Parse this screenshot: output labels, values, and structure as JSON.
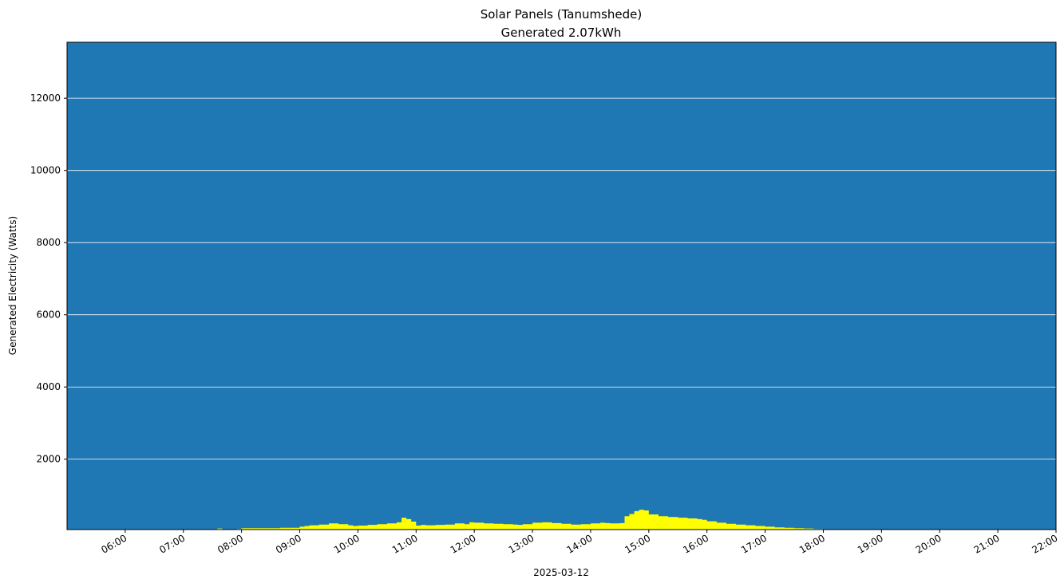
{
  "chart_data": {
    "type": "area",
    "title": "Solar Panels (Tanumshede)",
    "subtitle": "Generated 2.07kWh",
    "xlabel": "2025-03-12",
    "ylabel": "Generated Electricity (Watts)",
    "xlim": [
      "05:00",
      "22:00"
    ],
    "ylim": [
      50,
      13550
    ],
    "x_ticks": [
      "06:00",
      "07:00",
      "08:00",
      "09:00",
      "10:00",
      "11:00",
      "12:00",
      "13:00",
      "14:00",
      "15:00",
      "16:00",
      "17:00",
      "18:00",
      "19:00",
      "20:00",
      "21:00",
      "22:00"
    ],
    "y_ticks": [
      2000,
      4000,
      6000,
      8000,
      10000,
      12000
    ],
    "grid": "horizontal",
    "colors": {
      "background": "#1f77b4",
      "fill": "#ffff00",
      "grid": "#ffffff"
    },
    "series": [
      {
        "x": [
          "07:35",
          "07:40",
          "07:45",
          "07:55",
          "08:00",
          "08:10",
          "08:20",
          "08:30",
          "08:40",
          "08:50",
          "09:00",
          "09:05",
          "09:10",
          "09:20",
          "09:30",
          "09:40",
          "09:50",
          "09:55",
          "10:00",
          "10:10",
          "10:20",
          "10:30",
          "10:40",
          "10:45",
          "10:50",
          "10:55",
          "11:00",
          "11:05",
          "11:10",
          "11:20",
          "11:30",
          "11:40",
          "11:50",
          "11:55",
          "12:00",
          "12:10",
          "12:20",
          "12:30",
          "12:40",
          "12:45",
          "12:50",
          "13:00",
          "13:10",
          "13:20",
          "13:30",
          "13:40",
          "13:50",
          "14:00",
          "14:10",
          "14:15",
          "14:20",
          "14:30",
          "14:35",
          "14:40",
          "14:45",
          "14:50",
          "14:55",
          "15:00",
          "15:10",
          "15:20",
          "15:30",
          "15:40",
          "15:50",
          "15:55",
          "16:00",
          "16:10",
          "16:20",
          "16:30",
          "16:40",
          "16:50",
          "17:00",
          "17:10",
          "17:20",
          "17:30",
          "17:40",
          "17:50",
          "18:00",
          "18:05",
          "18:10"
        ],
        "y": [
          80,
          60,
          60,
          70,
          90,
          90,
          90,
          90,
          100,
          100,
          130,
          150,
          170,
          190,
          220,
          200,
          170,
          150,
          160,
          180,
          200,
          220,
          250,
          380,
          340,
          270,
          160,
          180,
          170,
          180,
          190,
          220,
          200,
          250,
          240,
          220,
          210,
          200,
          190,
          180,
          200,
          240,
          250,
          230,
          210,
          190,
          200,
          220,
          240,
          230,
          220,
          230,
          420,
          480,
          560,
          600,
          580,
          470,
          420,
          400,
          380,
          360,
          340,
          320,
          280,
          240,
          210,
          190,
          170,
          150,
          130,
          110,
          100,
          90,
          80,
          70,
          60,
          60,
          50
        ]
      }
    ]
  }
}
